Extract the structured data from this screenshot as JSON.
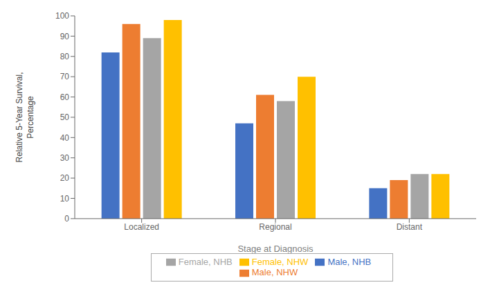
{
  "chart_data": {
    "type": "bar",
    "categories": [
      "Localized",
      "Regional",
      "Distant"
    ],
    "series": [
      {
        "name": "Male, NHB",
        "color": "#4472C4",
        "values": [
          82,
          47,
          15
        ]
      },
      {
        "name": "Male, NHW",
        "color": "#ED7D31",
        "values": [
          96,
          61,
          19
        ]
      },
      {
        "name": "Female, NHB",
        "color": "#A5A5A5",
        "values": [
          89,
          58,
          22
        ]
      },
      {
        "name": "Female, NHW",
        "color": "#FFC000",
        "values": [
          98,
          70,
          22
        ]
      }
    ],
    "xlabel": "Stage at Diagnosis",
    "ylabel": "Relative 5-Year Survival,\nPercentage",
    "ylim": [
      0,
      100
    ],
    "yticks": [
      0,
      10,
      20,
      30,
      40,
      50,
      60,
      70,
      80,
      90,
      100
    ],
    "grid": false,
    "legend": "bottom"
  }
}
